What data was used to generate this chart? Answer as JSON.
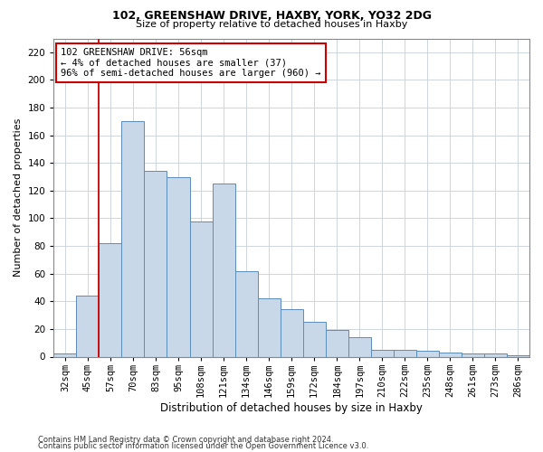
{
  "title1": "102, GREENSHAW DRIVE, HAXBY, YORK, YO32 2DG",
  "title2": "Size of property relative to detached houses in Haxby",
  "xlabel": "Distribution of detached houses by size in Haxby",
  "ylabel": "Number of detached properties",
  "footer1": "Contains HM Land Registry data © Crown copyright and database right 2024.",
  "footer2": "Contains public sector information licensed under the Open Government Licence v3.0.",
  "annotation_line1": "102 GREENSHAW DRIVE: 56sqm",
  "annotation_line2": "← 4% of detached houses are smaller (37)",
  "annotation_line3": "96% of semi-detached houses are larger (960) →",
  "bar_color": "#c8d8e8",
  "bar_edge_color": "#5b8db8",
  "ref_line_color": "#cc0000",
  "annotation_box_color": "#cc0000",
  "background_color": "#ffffff",
  "grid_color": "#c8d0d8",
  "categories": [
    "32sqm",
    "45sqm",
    "57sqm",
    "70sqm",
    "83sqm",
    "95sqm",
    "108sqm",
    "121sqm",
    "134sqm",
    "146sqm",
    "159sqm",
    "172sqm",
    "184sqm",
    "197sqm",
    "210sqm",
    "222sqm",
    "235sqm",
    "248sqm",
    "261sqm",
    "273sqm",
    "286sqm"
  ],
  "bar_heights": [
    2,
    44,
    82,
    170,
    134,
    130,
    98,
    125,
    62,
    42,
    34,
    25,
    19,
    14,
    5,
    5,
    4,
    3,
    2,
    2,
    1
  ],
  "ref_line_x": 1.5,
  "ylim": [
    0,
    230
  ],
  "yticks": [
    0,
    20,
    40,
    60,
    80,
    100,
    120,
    140,
    160,
    180,
    200,
    220
  ],
  "title1_fontsize": 9,
  "title2_fontsize": 8,
  "ylabel_fontsize": 8,
  "xlabel_fontsize": 8.5,
  "tick_fontsize": 7.5,
  "footer_fontsize": 6
}
